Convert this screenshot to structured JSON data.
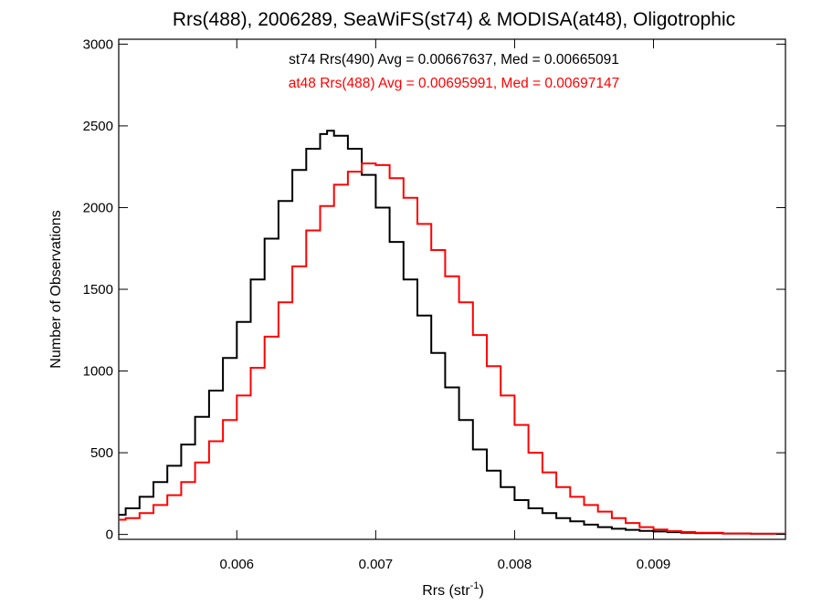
{
  "chart_data": {
    "type": "line",
    "title": "Rrs(488), 2006289, SeaWiFS(st74) & MODISA(at48), Oligotrophic",
    "xlabel_main": "Rrs (str",
    "xlabel_sup": "-1",
    "xlabel_close": ")",
    "ylabel": "Number of Observations",
    "xlim": [
      0.00515,
      0.00995
    ],
    "ylim": [
      -30,
      3030
    ],
    "x_ticks": [
      {
        "value": 0.006,
        "label": "0.006"
      },
      {
        "value": 0.007,
        "label": "0.007"
      },
      {
        "value": 0.008,
        "label": "0.008"
      },
      {
        "value": 0.009,
        "label": "0.009"
      }
    ],
    "y_ticks": [
      {
        "value": 0,
        "label": "0"
      },
      {
        "value": 500,
        "label": "500"
      },
      {
        "value": 1000,
        "label": "1000"
      },
      {
        "value": 1500,
        "label": "1500"
      },
      {
        "value": 2000,
        "label": "2000"
      },
      {
        "value": 2500,
        "label": "2500"
      },
      {
        "value": 3000,
        "label": "3000"
      }
    ],
    "grid": false,
    "step": true,
    "series": [
      {
        "name": "st74 Rrs(490) Avg = 0.00667637, Med = 0.00665091",
        "color": "#000000",
        "x": [
          0.00515,
          0.0052,
          0.0053,
          0.0054,
          0.0055,
          0.0056,
          0.0057,
          0.0058,
          0.0059,
          0.006,
          0.0061,
          0.0062,
          0.0063,
          0.0064,
          0.0065,
          0.0066,
          0.00665,
          0.0067,
          0.0068,
          0.0069,
          0.007,
          0.0071,
          0.0072,
          0.0073,
          0.0074,
          0.0075,
          0.0076,
          0.0077,
          0.0078,
          0.0079,
          0.008,
          0.0081,
          0.0082,
          0.0083,
          0.0084,
          0.0085,
          0.0086,
          0.0087,
          0.0088,
          0.0089,
          0.009,
          0.0091,
          0.0092,
          0.0093,
          0.0095,
          0.0097,
          0.00995
        ],
        "y": [
          120,
          160,
          230,
          320,
          420,
          550,
          720,
          880,
          1080,
          1300,
          1560,
          1810,
          2040,
          2230,
          2360,
          2450,
          2470,
          2440,
          2360,
          2200,
          2000,
          1790,
          1560,
          1340,
          1110,
          900,
          700,
          520,
          390,
          290,
          210,
          160,
          130,
          100,
          80,
          60,
          45,
          35,
          28,
          22,
          18,
          14,
          10,
          8,
          6,
          4,
          3
        ]
      },
      {
        "name": "at48 Rrs(488) Avg = 0.00695991, Med = 0.00697147",
        "color": "#ff0000",
        "x": [
          0.00515,
          0.0052,
          0.0053,
          0.0054,
          0.0055,
          0.0056,
          0.0057,
          0.0058,
          0.0059,
          0.006,
          0.0061,
          0.0062,
          0.0063,
          0.0064,
          0.0065,
          0.0066,
          0.0067,
          0.0068,
          0.0069,
          0.007,
          0.0071,
          0.0072,
          0.0073,
          0.0074,
          0.0075,
          0.0076,
          0.0077,
          0.0078,
          0.0079,
          0.008,
          0.0081,
          0.0082,
          0.0083,
          0.0084,
          0.0085,
          0.0086,
          0.0087,
          0.0088,
          0.0089,
          0.009,
          0.0091,
          0.0092,
          0.0093,
          0.0095,
          0.0097,
          0.00995
        ],
        "y": [
          90,
          100,
          130,
          180,
          240,
          320,
          440,
          570,
          700,
          850,
          1020,
          1210,
          1420,
          1640,
          1860,
          2010,
          2140,
          2220,
          2270,
          2260,
          2180,
          2060,
          1900,
          1740,
          1580,
          1420,
          1220,
          1030,
          850,
          670,
          500,
          380,
          290,
          230,
          180,
          140,
          100,
          70,
          45,
          30,
          20,
          15,
          10,
          6,
          4,
          3
        ]
      }
    ]
  }
}
